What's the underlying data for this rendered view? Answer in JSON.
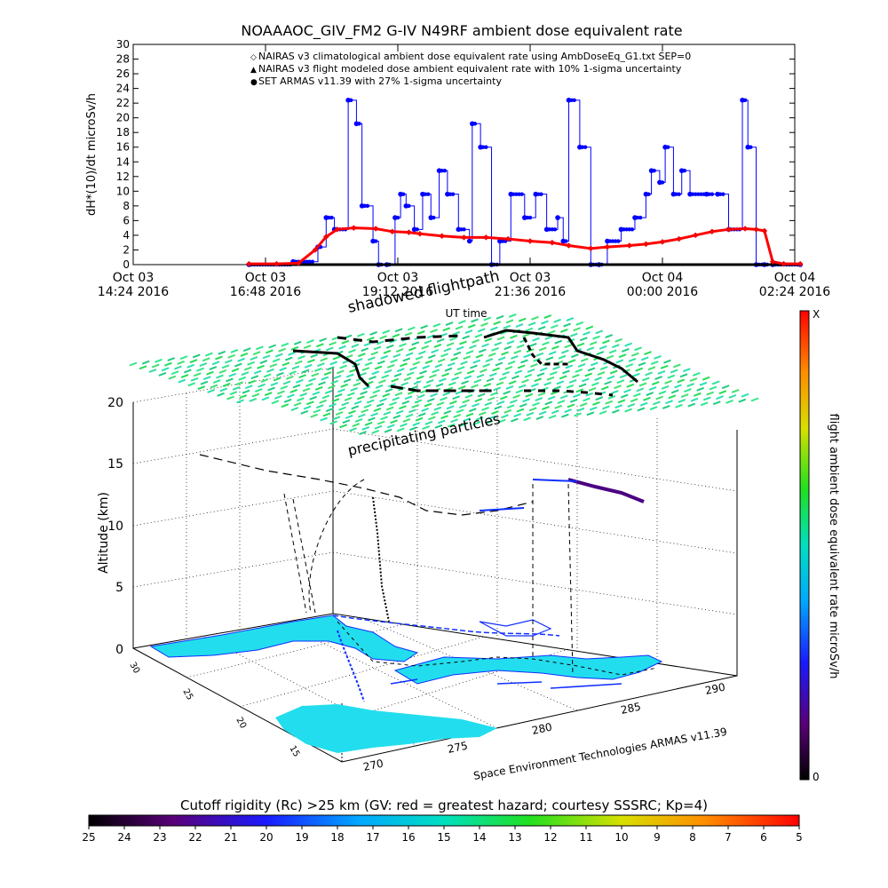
{
  "chart_data": [
    {
      "type": "line",
      "title": "NOAAAOC_GIV_FM2 G-IV   N49RF  ambient dose equivalent rate",
      "ylabel": "dH*(10)/dt microSv/h",
      "xlabel": "UT time",
      "ylim": [
        0,
        30
      ],
      "yticks": [
        "0",
        "2",
        "4",
        "6",
        "8",
        "10",
        "12",
        "14",
        "16",
        "18",
        "20",
        "22",
        "24",
        "26",
        "28",
        "30"
      ],
      "xticks": [
        {
          "line1": "Oct 03",
          "line2": "14:24 2016"
        },
        {
          "line1": "Oct 03",
          "line2": "16:48 2016"
        },
        {
          "line1": "Oct 03",
          "line2": "19:12 2016"
        },
        {
          "line1": "Oct 03",
          "line2": "21:36 2016"
        },
        {
          "line1": "Oct 04",
          "line2": "00:00 2016"
        },
        {
          "line1": "Oct 04",
          "line2": "02:24 2016"
        }
      ],
      "legend": [
        {
          "symbol": "◇",
          "color": "#ff0000",
          "text": "NAIRAS v3 climatological ambient dose equivalent rate using AmbDoseEq_G1.txt SEP=0"
        },
        {
          "symbol": "▲",
          "color": "#000000",
          "text": "NAIRAS v3 flight modeled dose ambient equivalent rate with 10% 1-sigma uncertainty"
        },
        {
          "symbol": "●",
          "color": "#0000ff",
          "text": "SET ARMAS v11.39 with 27% 1-sigma uncertainty"
        }
      ],
      "series": [
        {
          "name": "NAIRAS v3 climatological ambient dose equivalent rate using AmbDoseEq_G1.txt SEP=0",
          "color": "#ff0000",
          "x_hours": [
            16.5,
            17.0,
            17.4,
            17.7,
            17.9,
            18.1,
            18.4,
            18.8,
            19.1,
            19.4,
            19.6,
            20.0,
            20.4,
            20.8,
            21.2,
            21.6,
            22.0,
            22.3,
            22.7,
            23.0,
            23.4,
            23.7,
            24.0,
            24.3,
            24.6,
            24.9,
            25.2,
            25.5,
            25.7,
            25.85,
            26.0,
            26.2,
            26.5
          ],
          "values": [
            0.1,
            0.1,
            0.2,
            2.0,
            3.8,
            4.8,
            5.0,
            4.9,
            4.5,
            4.4,
            4.2,
            3.9,
            3.7,
            3.7,
            3.5,
            3.2,
            3.0,
            2.6,
            2.2,
            2.4,
            2.6,
            2.8,
            3.1,
            3.5,
            4.0,
            4.5,
            4.8,
            4.9,
            4.8,
            4.6,
            0.4,
            0.1,
            0.1
          ]
        },
        {
          "name": "NAIRAS v3 flight modeled dose ambient equivalent rate with 10% 1-sigma uncertainty",
          "color": "#000000",
          "x_hours": [
            16.5,
            17.5,
            18.5,
            19.5,
            20.5,
            21.5,
            22.5,
            23.5,
            24.5,
            25.5,
            26.5
          ],
          "values": [
            0,
            0,
            0,
            0,
            0,
            0,
            0,
            0,
            0,
            0,
            0
          ]
        },
        {
          "name": "SET ARMAS v11.39 with 27% 1-sigma uncertainty",
          "color": "#0000ff",
          "x_hours": [
            16.5,
            17.3,
            17.75,
            17.9,
            18.05,
            18.3,
            18.45,
            18.55,
            18.75,
            18.85,
            19.0,
            19.15,
            19.25,
            19.35,
            19.5,
            19.65,
            19.8,
            19.95,
            20.1,
            20.3,
            20.5,
            20.55,
            20.7,
            20.9,
            21.05,
            21.25,
            21.5,
            21.7,
            21.9,
            22.1,
            22.2,
            22.3,
            22.5,
            22.7,
            22.85,
            23.0,
            23.25,
            23.5,
            23.7,
            23.8,
            23.95,
            24.05,
            24.2,
            24.35,
            24.5,
            24.8,
            25.0,
            25.2,
            25.45,
            25.55,
            25.7,
            25.85,
            26.0,
            26.5
          ],
          "values": [
            0,
            0.4,
            2.4,
            6.4,
            4.8,
            22.4,
            19.2,
            8.0,
            3.2,
            0,
            0,
            6.4,
            9.6,
            8.0,
            4.8,
            9.6,
            6.4,
            12.8,
            9.6,
            4.8,
            3.2,
            19.2,
            16.0,
            0,
            3.2,
            9.6,
            6.4,
            9.6,
            4.8,
            6.4,
            3.2,
            22.4,
            16.0,
            0,
            0,
            3.2,
            4.8,
            6.4,
            9.6,
            12.8,
            11.2,
            16.0,
            9.6,
            12.8,
            9.6,
            9.6,
            9.6,
            4.8,
            22.4,
            16.0,
            0,
            0,
            0,
            0
          ]
        }
      ]
    },
    {
      "type": "scatter",
      "title": "",
      "zlabel": "Altitude (km)",
      "zticks": [
        "0",
        "5",
        "10",
        "15",
        "20"
      ],
      "xticks": [
        "270",
        "275",
        "280",
        "285",
        "290"
      ],
      "yticks": [
        "15",
        "20",
        "25",
        "30"
      ],
      "credit": "Space Environment Technologies ARMAS v11.39",
      "annotations": [
        "shadowed flightpath",
        "precipitating particles"
      ],
      "colorbar_label": "flight ambient dose equivalent rate microSv/h",
      "colorbar_max": "X",
      "colorbar_min": "0",
      "rigidity_label": "Cutoff rigidity (Rc) >25 km (GV: red = greatest hazard; courtesy SSSRC; Kp=4)",
      "rigidity_ticks": [
        "25",
        "24",
        "23",
        "22",
        "21",
        "20",
        "19",
        "18",
        "17",
        "16",
        "15",
        "14",
        "13",
        "12",
        "11",
        "10",
        "9",
        "8",
        "7",
        "6",
        "5"
      ]
    }
  ]
}
